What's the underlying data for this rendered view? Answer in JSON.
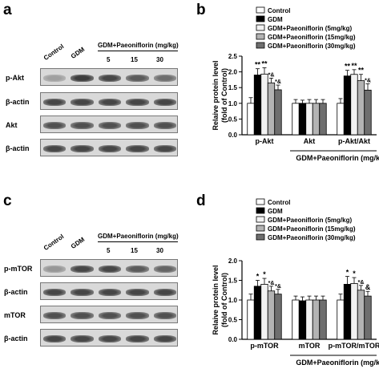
{
  "panels": {
    "a": "a",
    "b": "b",
    "c": "c",
    "d": "d"
  },
  "blots_top": {
    "col_labels": [
      "Control",
      "GDM"
    ],
    "treatment_label": "GDM+Paeoniflorin (mg/kg)",
    "doses": [
      "5",
      "15",
      "30"
    ],
    "rows": [
      "p-Akt",
      "β-actin",
      "Akt",
      "β-actin"
    ],
    "intensities": [
      [
        0.35,
        0.85,
        0.8,
        0.7,
        0.6
      ],
      [
        0.8,
        0.8,
        0.8,
        0.8,
        0.8
      ],
      [
        0.75,
        0.75,
        0.75,
        0.75,
        0.75
      ],
      [
        0.8,
        0.8,
        0.8,
        0.8,
        0.8
      ]
    ]
  },
  "blots_bottom": {
    "col_labels": [
      "Control",
      "GDM"
    ],
    "treatment_label": "GDM+Paeoniflorin (mg/kg)",
    "doses": [
      "5",
      "15",
      "30"
    ],
    "rows": [
      "p-mTOR",
      "β-actin",
      "mTOR",
      "β-actin"
    ],
    "intensities": [
      [
        0.4,
        0.8,
        0.8,
        0.7,
        0.65
      ],
      [
        0.8,
        0.8,
        0.8,
        0.8,
        0.8
      ],
      [
        0.75,
        0.75,
        0.75,
        0.75,
        0.75
      ],
      [
        0.8,
        0.8,
        0.8,
        0.8,
        0.8
      ]
    ]
  },
  "chart_data": [
    {
      "type": "bar",
      "ylabel": "Relaive protein level\n(fold of Control)",
      "ylim": [
        0,
        2.5
      ],
      "yticks": [
        "0.0",
        "0.5",
        "1.0",
        "1.5",
        "2.0",
        "2.5"
      ],
      "categories": [
        "p-Akt",
        "Akt",
        "p-Akt/Akt"
      ],
      "group_caption": "GDM+Paeoniflorin (mg/kg)",
      "series": [
        {
          "name": "Control",
          "color": "#ffffff",
          "values": [
            1.0,
            1.0,
            1.0
          ],
          "errors": [
            0.18,
            0.12,
            0.15
          ]
        },
        {
          "name": "GDM",
          "color": "#000000",
          "values": [
            1.9,
            1.0,
            1.87
          ],
          "errors": [
            0.2,
            0.1,
            0.18
          ]
        },
        {
          "name": "GDM+Paeoniflorin (5mg/kg)",
          "color": "#f2f2f2",
          "values": [
            1.93,
            1.0,
            1.92
          ],
          "errors": [
            0.2,
            0.12,
            0.15
          ]
        },
        {
          "name": "GDM+Paeoniflorin (15mg/kg)",
          "color": "#b3b3b3",
          "values": [
            1.65,
            1.0,
            1.72
          ],
          "errors": [
            0.15,
            0.12,
            0.2
          ]
        },
        {
          "name": "GDM+Paeoniflorin (30mg/kg)",
          "color": "#6e6e6e",
          "values": [
            1.43,
            1.0,
            1.42
          ],
          "errors": [
            0.15,
            0.12,
            0.2
          ]
        }
      ],
      "annotations": [
        [
          "",
          "**",
          "**",
          "*&",
          "*&"
        ],
        [
          "",
          "",
          "",
          "",
          ""
        ],
        [
          "",
          "**",
          "**",
          "**",
          "*&"
        ]
      ],
      "legend": "top-right"
    },
    {
      "type": "bar",
      "ylabel": "Relaive protein level\n(fold of Control)",
      "ylim": [
        0,
        2.0
      ],
      "yticks": [
        "0.0",
        "0.5",
        "1.0",
        "1.5",
        "2.0"
      ],
      "categories": [
        "p-mTOR",
        "mTOR",
        "p-mTOR/mTOR"
      ],
      "group_caption": "GDM+Paeoniflorin (mg/kg)",
      "series": [
        {
          "name": "Control",
          "color": "#ffffff",
          "values": [
            1.0,
            1.0,
            1.0
          ],
          "errors": [
            0.15,
            0.1,
            0.15
          ]
        },
        {
          "name": "GDM",
          "color": "#000000",
          "values": [
            1.35,
            0.98,
            1.4
          ],
          "errors": [
            0.15,
            0.1,
            0.2
          ]
        },
        {
          "name": "GDM+Paeoniflorin (5mg/kg)",
          "color": "#f2f2f2",
          "values": [
            1.4,
            1.0,
            1.42
          ],
          "errors": [
            0.15,
            0.1,
            0.15
          ]
        },
        {
          "name": "GDM+Paeoniflorin (15mg/kg)",
          "color": "#b3b3b3",
          "values": [
            1.23,
            1.0,
            1.25
          ],
          "errors": [
            0.12,
            0.1,
            0.12
          ]
        },
        {
          "name": "GDM+Paeoniflorin (30mg/kg)",
          "color": "#6e6e6e",
          "values": [
            1.15,
            1.0,
            1.1
          ],
          "errors": [
            0.12,
            0.1,
            0.12
          ]
        }
      ],
      "annotations": [
        [
          "",
          "*",
          "*",
          "*&",
          "*&"
        ],
        [
          "",
          "",
          "",
          "",
          ""
        ],
        [
          "",
          "*",
          "*",
          "*&",
          "&"
        ]
      ],
      "legend": "top-right"
    }
  ]
}
